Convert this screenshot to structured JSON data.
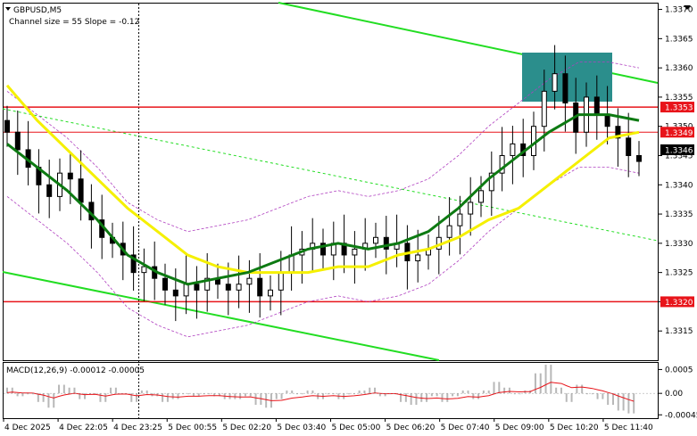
{
  "header": {
    "symbol": "GBPUSD,M5",
    "channel_info": "Channel size = 55 Slope = -0.12"
  },
  "macd": {
    "label": "MACD(12,26,9) -0.00012 -0.00005",
    "ticks": [
      "0.0005",
      "0.00",
      "-0.00045"
    ]
  },
  "price_axis": {
    "ticks": [
      "1.3370",
      "1.3365",
      "1.3360",
      "1.3355",
      "1.3350",
      "1.3345",
      "1.3340",
      "1.3335",
      "1.3330",
      "1.3325",
      "1.3320",
      "1.3315"
    ]
  },
  "price_labels": [
    {
      "text": "1.3353",
      "price": 1.33533,
      "style": "red"
    },
    {
      "text": "1.3349",
      "price": 1.3349,
      "style": "red"
    },
    {
      "text": "1.3346",
      "price": 1.3346,
      "style": "black"
    },
    {
      "text": "1.3320",
      "price": 1.332,
      "style": "red"
    }
  ],
  "time_axis": {
    "labels": [
      "4 Dec 2025",
      "4 Dec 22:05",
      "4 Dec 23:25",
      "5 Dec 00:55",
      "5 Dec 02:20",
      "5 Dec 03:40",
      "5 Dec 05:00",
      "5 Dec 06:20",
      "5 Dec 07:40",
      "5 Dec 09:00",
      "5 Dec 10:20",
      "5 Dec 11:40"
    ]
  },
  "chart_data": {
    "type": "line",
    "symbol": "GBPUSD",
    "timeframe": "M5",
    "y_range": [
      1.331,
      1.3371
    ],
    "horizontal_levels": [
      1.33533,
      1.3349,
      1.332
    ],
    "current_price": 1.3346,
    "candles_close": [
      1.3349,
      1.3346,
      1.3343,
      1.334,
      1.3338,
      1.3342,
      1.3341,
      1.3337,
      1.3334,
      1.3331,
      1.333,
      1.3328,
      1.3325,
      1.3326,
      1.3324,
      1.3322,
      1.3321,
      1.3323,
      1.3322,
      1.3324,
      1.3323,
      1.3322,
      1.3323,
      1.3324,
      1.3321,
      1.3322,
      1.3325,
      1.3328,
      1.3329,
      1.333,
      1.3328,
      1.333,
      1.3328,
      1.3329,
      1.333,
      1.3331,
      1.3329,
      1.333,
      1.3327,
      1.3328,
      1.3329,
      1.3331,
      1.3333,
      1.3335,
      1.3337,
      1.3339,
      1.3342,
      1.3345,
      1.3347,
      1.3345,
      1.335,
      1.3356,
      1.3359,
      1.3354,
      1.3349,
      1.3355,
      1.3352,
      1.335,
      1.3348,
      1.3345,
      1.3344
    ],
    "series": [
      {
        "name": "MA (yellow)",
        "values": [
          1.3357,
          1.3351,
          1.3346,
          1.3341,
          1.3336,
          1.3332,
          1.3328,
          1.3326,
          1.3325,
          1.3325,
          1.3325,
          1.3326,
          1.3326,
          1.3328,
          1.3329,
          1.3331,
          1.3334,
          1.3336,
          1.334,
          1.3344,
          1.3348,
          1.3349
        ]
      },
      {
        "name": "MA (green)",
        "values": [
          1.3347,
          1.3343,
          1.3339,
          1.3334,
          1.3328,
          1.3325,
          1.3323,
          1.3324,
          1.3325,
          1.3327,
          1.3329,
          1.333,
          1.3329,
          1.333,
          1.3332,
          1.3336,
          1.3341,
          1.3345,
          1.3349,
          1.3352,
          1.3352,
          1.3351
        ]
      }
    ],
    "macd": {
      "label": "MACD(12,26,9)",
      "main": -0.00012,
      "signal": -5e-05,
      "ticks": [
        0.0005,
        0.0,
        -0.00045
      ]
    }
  }
}
